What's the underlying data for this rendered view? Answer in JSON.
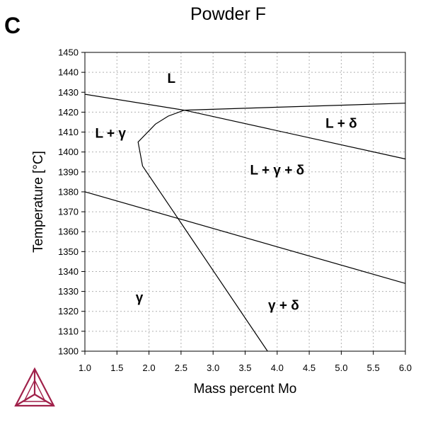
{
  "panel_letter": "C",
  "colors": {
    "line": "#000000",
    "grid": "#b0b0b0",
    "logo": "#a0214a"
  },
  "logo": {
    "icon": "thermo-calc-triangle-logo"
  },
  "chart_data": {
    "type": "line",
    "title": "Powder F",
    "xlabel": "Mass percent Mo",
    "ylabel": "Temperature [°C]",
    "xlim": [
      1.0,
      6.0
    ],
    "ylim": [
      1300,
      1450
    ],
    "x_ticks": [
      1.0,
      1.5,
      2.0,
      2.5,
      3.0,
      3.5,
      4.0,
      4.5,
      5.0,
      5.5,
      6.0
    ],
    "x_tick_labels": [
      "1.0",
      "1.5",
      "2.0",
      "2.5",
      "3.0",
      "3.5",
      "4.0",
      "4.5",
      "5.0",
      "5.5",
      "6.0"
    ],
    "y_ticks": [
      1300,
      1310,
      1320,
      1330,
      1340,
      1350,
      1360,
      1370,
      1380,
      1390,
      1400,
      1410,
      1420,
      1430,
      1440,
      1450
    ],
    "y_tick_labels": [
      "1300",
      "1310",
      "1320",
      "1330",
      "1340",
      "1350",
      "1360",
      "1370",
      "1380",
      "1390",
      "1400",
      "1410",
      "1420",
      "1430",
      "1440",
      "1450"
    ],
    "grid": true,
    "series": [
      {
        "points": [
          [
            1.0,
            1429
          ],
          [
            2.55,
            1421
          ],
          [
            6.0,
            1396.5
          ]
        ]
      },
      {
        "points": [
          [
            2.55,
            1421
          ],
          [
            6.0,
            1424.5
          ]
        ]
      },
      {
        "points": [
          [
            2.55,
            1421
          ],
          [
            2.3,
            1418
          ],
          [
            2.1,
            1414
          ],
          [
            1.83,
            1405
          ],
          [
            1.9,
            1393
          ],
          [
            3.85,
            1300
          ]
        ]
      },
      {
        "points": [
          [
            1.0,
            1380
          ],
          [
            6.0,
            1334
          ]
        ]
      }
    ],
    "annotations": [
      {
        "text": "L",
        "x": 2.35,
        "y": 1436.5
      },
      {
        "text": "L + γ",
        "x": 1.4,
        "y": 1409
      },
      {
        "text": "L + δ",
        "x": 5.0,
        "y": 1414
      },
      {
        "text": "L + γ + δ",
        "x": 4.0,
        "y": 1390.5
      },
      {
        "text": "γ",
        "x": 1.85,
        "y": 1326.5
      },
      {
        "text": "γ + δ",
        "x": 4.1,
        "y": 1322.5
      }
    ]
  }
}
